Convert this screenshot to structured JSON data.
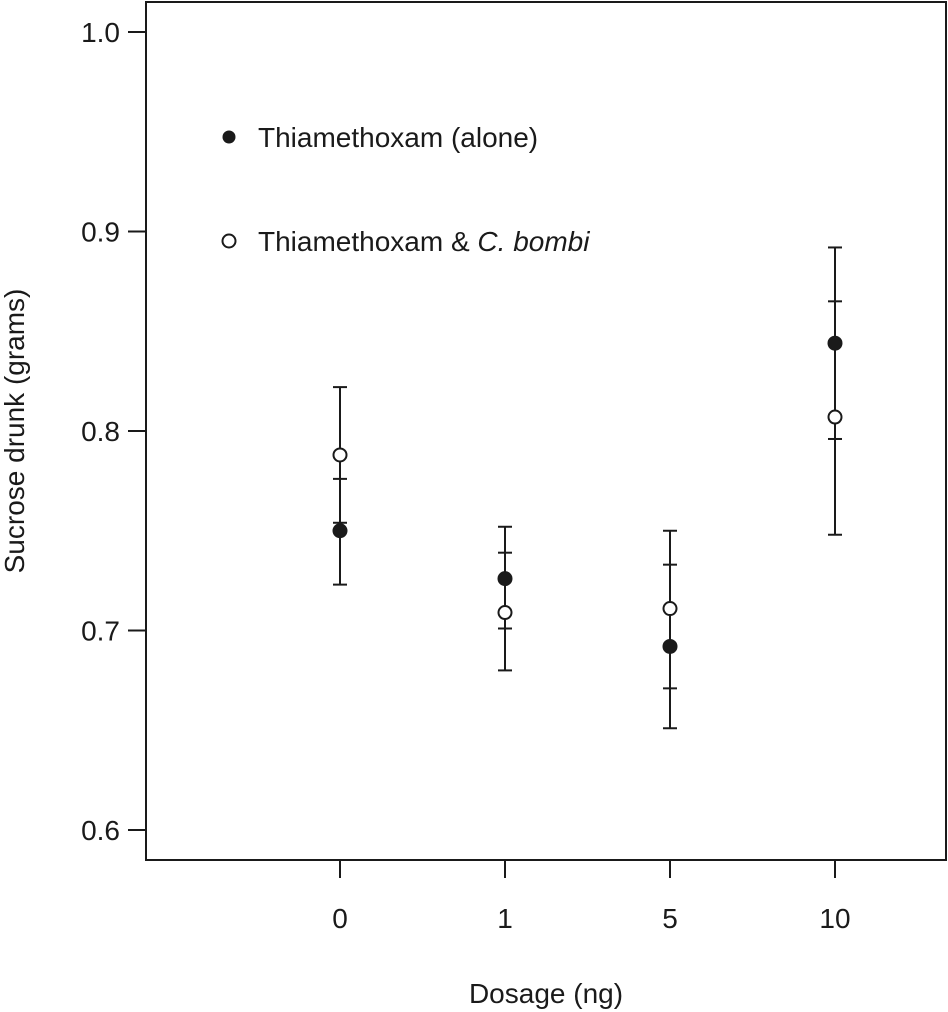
{
  "chart_data": {
    "type": "scatter",
    "categories": [
      "0",
      "1",
      "5",
      "10"
    ],
    "xlabel": "Dosage (ng)",
    "ylabel": "Sucrose drunk (grams)",
    "ylim": [
      0.6,
      1.0
    ],
    "yticks": [
      "0.6",
      "0.7",
      "0.8",
      "0.9",
      "1.0"
    ],
    "grid": false,
    "legend_position": "top-left",
    "series": [
      {
        "name": "Thiamethoxam (alone)",
        "marker": "filled-circle",
        "values": [
          0.75,
          0.726,
          0.692,
          0.844
        ],
        "lower": [
          0.723,
          0.701,
          0.671,
          0.796
        ],
        "upper": [
          0.776,
          0.752,
          0.733,
          0.892
        ]
      },
      {
        "name": "Thiamethoxam & C. bombi",
        "marker": "open-circle",
        "values": [
          0.788,
          0.709,
          0.711,
          0.807
        ],
        "lower": [
          0.754,
          0.68,
          0.651,
          0.748
        ],
        "upper": [
          0.822,
          0.739,
          0.75,
          0.865
        ]
      }
    ]
  },
  "legend": {
    "item1": "Thiamethoxam (alone)",
    "item2_prefix": "Thiamethoxam & ",
    "item2_italic": "C. bombi"
  },
  "colors": {
    "ink": "#1a1a1a",
    "background": "#ffffff"
  }
}
